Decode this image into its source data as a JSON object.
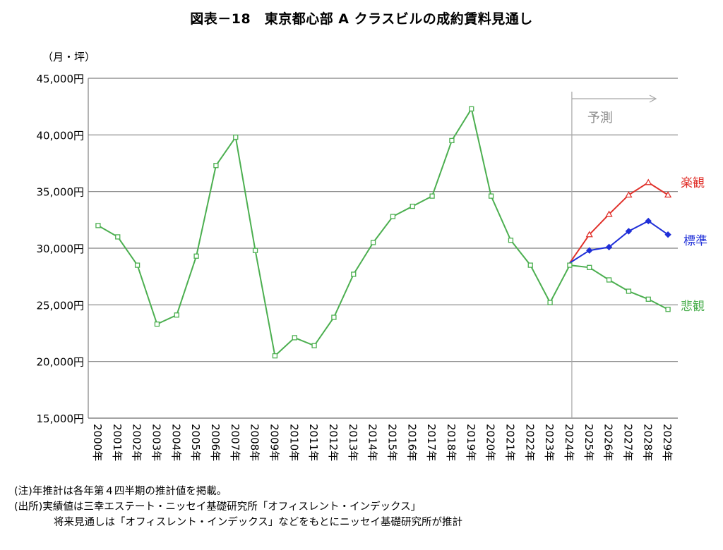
{
  "title": "図表－18　東京都心部 A クラスビルの成約賃料見通し",
  "notes": [
    "(注)年推計は各年第４四半期の推計値を掲載。",
    "(出所)実績値は三幸エステート・ニッセイ基礎研究所「オフィスレント・インデックス」",
    "将来見通しは「オフィスレント・インデックス」などをもとにニッセイ基礎研究所が推計"
  ],
  "chart_data": {
    "type": "line",
    "unit_label": "（月・坪）",
    "forecast_label": "予測",
    "forecast_start": "2024年",
    "ylim": [
      15000,
      45000
    ],
    "yticks": [
      15000,
      20000,
      25000,
      30000,
      35000,
      40000,
      45000
    ],
    "ytick_labels": [
      "15,000円",
      "20,000円",
      "25,000円",
      "30,000円",
      "35,000円",
      "40,000円",
      "45,000円"
    ],
    "grid": true,
    "categories": [
      "2000年",
      "2001年",
      "2002年",
      "2003年",
      "2004年",
      "2005年",
      "2006年",
      "2007年",
      "2008年",
      "2009年",
      "2010年",
      "2011年",
      "2012年",
      "2013年",
      "2014年",
      "2015年",
      "2016年",
      "2017年",
      "2018年",
      "2019年",
      "2020年",
      "2021年",
      "2022年",
      "2023年",
      "2024年",
      "2025年",
      "2026年",
      "2027年",
      "2028年",
      "2029年"
    ],
    "series": [
      {
        "name": "楽観",
        "color": "#e0302a",
        "marker": "triangle",
        "values": [
          null,
          null,
          null,
          null,
          null,
          null,
          null,
          null,
          null,
          null,
          null,
          null,
          null,
          null,
          null,
          null,
          null,
          null,
          null,
          null,
          null,
          null,
          null,
          null,
          28700,
          31200,
          33000,
          34700,
          35800,
          34700
        ]
      },
      {
        "name": "標準",
        "color": "#1f2fd8",
        "marker": "diamond",
        "values": [
          null,
          null,
          null,
          null,
          null,
          null,
          null,
          null,
          null,
          null,
          null,
          null,
          null,
          null,
          null,
          null,
          null,
          null,
          null,
          null,
          null,
          null,
          null,
          null,
          28700,
          29800,
          30100,
          31500,
          32400,
          31200
        ]
      },
      {
        "name": "悲観",
        "color": "#4caf50",
        "marker": "square",
        "values": [
          32000,
          31000,
          28500,
          23300,
          24100,
          29300,
          37300,
          39800,
          29800,
          20500,
          22100,
          21400,
          23900,
          27700,
          30500,
          32800,
          33700,
          34600,
          39500,
          42300,
          34600,
          30700,
          28500,
          25200,
          28500,
          28300,
          27200,
          26200,
          25500,
          24600
        ]
      }
    ]
  }
}
